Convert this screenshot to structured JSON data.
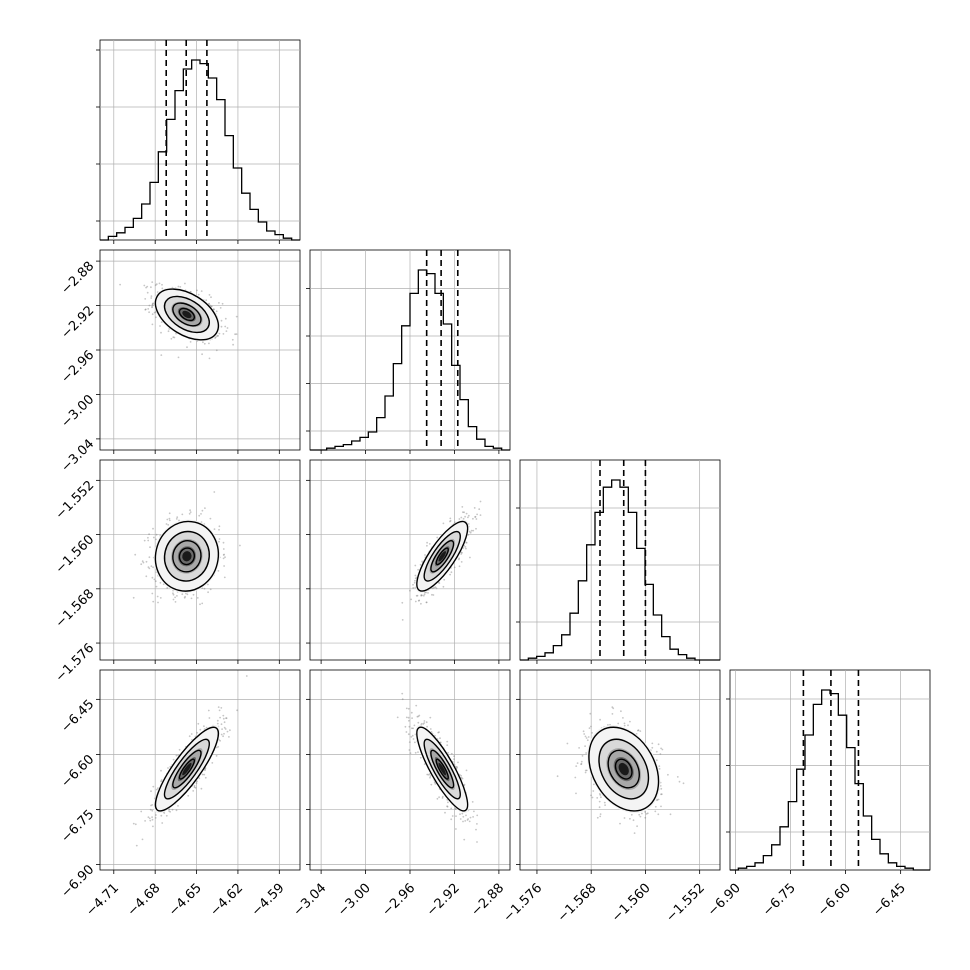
{
  "chart_data": {
    "type": "corner",
    "parameters": [
      {
        "axis_range": [
          -4.72,
          -4.575
        ],
        "ticks": [
          -4.71,
          -4.68,
          -4.65,
          -4.62,
          -4.59
        ],
        "tick_labels": [
          "−4.71",
          "−4.68",
          "−4.65",
          "−4.62",
          "−4.59"
        ],
        "quantiles": [
          -4.672,
          -4.6575,
          -4.6425
        ],
        "histogram": [
          0,
          0.02,
          0.04,
          0.07,
          0.12,
          0.2,
          0.32,
          0.49,
          0.67,
          0.83,
          0.95,
          1.0,
          0.98,
          0.9,
          0.78,
          0.58,
          0.4,
          0.26,
          0.17,
          0.1,
          0.05,
          0.03,
          0.01,
          0
        ],
        "hist_yticks": [
          0.1,
          0.4,
          0.7,
          1.0
        ]
      },
      {
        "axis_range": [
          -3.05,
          -2.87
        ],
        "ticks": [
          -3.04,
          -3.0,
          -2.96,
          -2.92,
          -2.88
        ],
        "tick_labels": [
          "−3.04",
          "−3.00",
          "−2.96",
          "−2.92",
          "−2.88"
        ],
        "quantiles": [
          -2.945,
          -2.932,
          -2.917
        ],
        "histogram": [
          0,
          0.0,
          0.01,
          0.02,
          0.03,
          0.05,
          0.07,
          0.1,
          0.18,
          0.3,
          0.48,
          0.69,
          0.87,
          1.0,
          0.98,
          0.87,
          0.7,
          0.47,
          0.28,
          0.13,
          0.06,
          0.02,
          0.01,
          0
        ],
        "hist_yticks": [
          0.1,
          0.35,
          0.6,
          0.85
        ]
      },
      {
        "axis_range": [
          -1.5785,
          -1.549
        ],
        "ticks": [
          -1.576,
          -1.568,
          -1.56,
          -1.552
        ],
        "tick_labels": [
          "−1.576",
          "−1.568",
          "−1.560",
          "−1.552"
        ],
        "quantiles": [
          -1.5667,
          -1.5632,
          -1.56
        ],
        "histogram": [
          0,
          0.01,
          0.02,
          0.04,
          0.08,
          0.14,
          0.26,
          0.44,
          0.64,
          0.82,
          0.96,
          1.0,
          0.96,
          0.82,
          0.62,
          0.42,
          0.25,
          0.13,
          0.06,
          0.03,
          0.01,
          0.0,
          0.0,
          0
        ],
        "hist_yticks": [
          0.2,
          0.5,
          0.8
        ]
      },
      {
        "axis_range": [
          -6.915,
          -6.37
        ],
        "ticks": [
          -6.9,
          -6.75,
          -6.6,
          -6.45
        ],
        "tick_labels": [
          "−6.90",
          "−6.75",
          "−6.60",
          "−6.45"
        ],
        "quantiles": [
          -6.715,
          -6.64,
          -6.565
        ],
        "histogram": [
          0,
          0.01,
          0.02,
          0.04,
          0.08,
          0.14,
          0.24,
          0.38,
          0.56,
          0.75,
          0.92,
          1.0,
          0.98,
          0.86,
          0.68,
          0.48,
          0.3,
          0.17,
          0.09,
          0.04,
          0.02,
          0.01,
          0.0,
          0
        ],
        "hist_yticks": [
          0.2,
          0.55,
          0.9
        ]
      }
    ],
    "pairs": [
      {
        "x": 0,
        "y": 1,
        "center": [
          -4.657,
          -2.928
        ],
        "sigma": [
          0.012,
          0.012
        ],
        "rho": -0.45
      },
      {
        "x": 0,
        "y": 2,
        "center": [
          -4.657,
          -1.5632
        ],
        "sigma": [
          0.012,
          0.0027
        ],
        "rho": 0.05
      },
      {
        "x": 1,
        "y": 2,
        "center": [
          -2.931,
          -1.5632
        ],
        "sigma": [
          0.012,
          0.0027
        ],
        "rho": 0.8
      },
      {
        "x": 0,
        "y": 3,
        "center": [
          -4.657,
          -6.64
        ],
        "sigma": [
          0.012,
          0.06
        ],
        "rho": 0.85
      },
      {
        "x": 1,
        "y": 3,
        "center": [
          -2.931,
          -6.64
        ],
        "sigma": [
          0.012,
          0.06
        ],
        "rho": -0.85
      },
      {
        "x": 2,
        "y": 3,
        "center": [
          -1.5632,
          -6.64
        ],
        "sigma": [
          0.0027,
          0.06
        ],
        "rho": -0.3
      }
    ],
    "grid": true,
    "colors": {
      "line": "#000000",
      "points": "#808080",
      "grid": "#b0b0b0"
    }
  }
}
